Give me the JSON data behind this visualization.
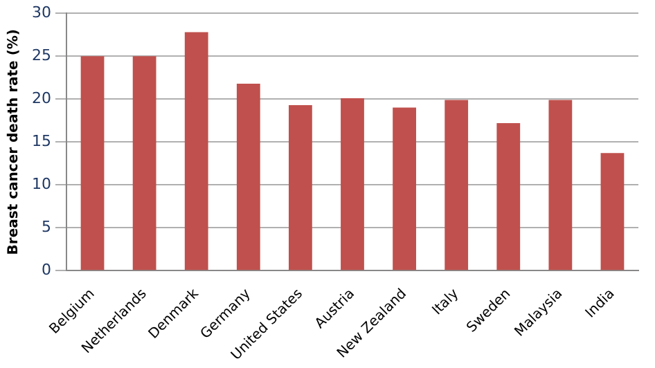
{
  "chart_data": {
    "type": "bar",
    "ylabel": "Breast cancer death rate (%)",
    "categories": [
      "Belgium",
      "Netherlands",
      "Denmark",
      "Germany",
      "United States",
      "Austria",
      "New Zealand",
      "Italy",
      "Sweden",
      "Malaysia",
      "India"
    ],
    "values": [
      25,
      25,
      27.8,
      21.8,
      19.3,
      20.1,
      19,
      19.9,
      17.2,
      19.9,
      13.7
    ],
    "color": "#c0504d",
    "ylim": [
      0,
      30
    ],
    "yticks": [
      0,
      5,
      10,
      15,
      20,
      25,
      30
    ],
    "grid": "y"
  }
}
